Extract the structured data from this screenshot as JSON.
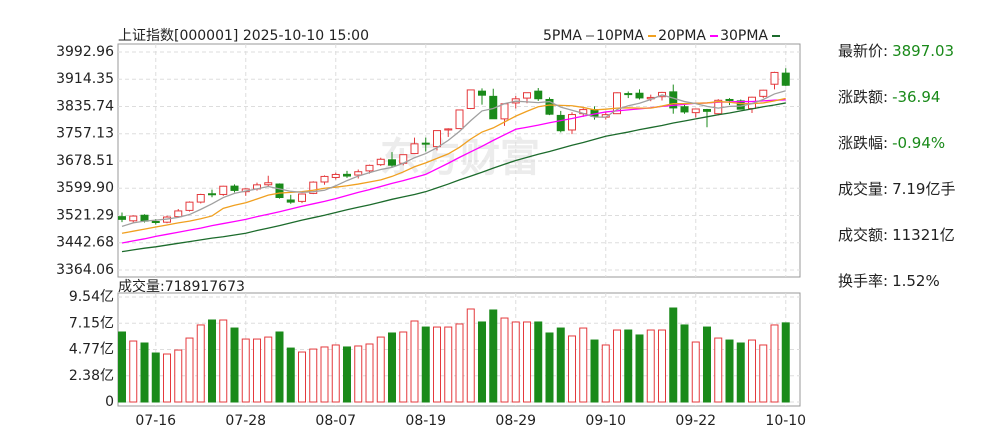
{
  "chart_data": [
    {
      "type": "candlestick",
      "title": "上证指数[000001] 2025-10-10 15:00",
      "watermark": "东方财富",
      "up_color": "#e4393c",
      "down_color": "#1a8a1a",
      "grid": true,
      "ylim": [
        3364.06,
        3992.96
      ],
      "yticks": [
        3992.96,
        3914.35,
        3835.74,
        3757.13,
        3678.51,
        {
          "value": 3599.9,
          "label": "3599.90"
        },
        3521.29,
        3442.68,
        3364.06
      ],
      "open": [
        3518,
        3506,
        3522,
        3504,
        3502,
        3518,
        3536,
        3560,
        3584,
        3582,
        3606,
        3590,
        3598,
        3610,
        3612,
        3566,
        3562,
        3585,
        3618,
        3631,
        3640,
        3638,
        3650,
        3668,
        3682,
        3672,
        3700,
        3730,
        3720,
        3768,
        3772,
        3830,
        3880,
        3865,
        3800,
        3846,
        3860,
        3880,
        3856,
        3810,
        3768,
        3815,
        3827,
        3805,
        3815,
        3873,
        3874,
        3858,
        3864,
        3878,
        3835,
        3818,
        3827,
        3815,
        3856,
        3852,
        3830,
        3865,
        3900,
        3932
      ],
      "high": [
        3530,
        3522,
        3525,
        3511,
        3521,
        3540,
        3562,
        3584,
        3596,
        3607,
        3611,
        3600,
        3616,
        3636,
        3614,
        3581,
        3585,
        3620,
        3637,
        3645,
        3650,
        3654,
        3668,
        3688,
        3704,
        3697,
        3746,
        3746,
        3767,
        3773,
        3826,
        3884,
        3888,
        3887,
        3844,
        3866,
        3876,
        3889,
        3862,
        3823,
        3819,
        3831,
        3836,
        3819,
        3877,
        3879,
        3885,
        3870,
        3878,
        3899,
        3840,
        3830,
        3829,
        3857,
        3860,
        3856,
        3864,
        3884,
        3936,
        3946
      ],
      "low": [
        3502,
        3500,
        3501,
        3495,
        3499,
        3515,
        3533,
        3556,
        3574,
        3578,
        3588,
        3578,
        3593,
        3605,
        3570,
        3555,
        3557,
        3583,
        3610,
        3625,
        3630,
        3628,
        3642,
        3664,
        3660,
        3666,
        3700,
        3706,
        3709,
        3748,
        3772,
        3828,
        3841,
        3800,
        3780,
        3830,
        3845,
        3852,
        3811,
        3761,
        3756,
        3806,
        3798,
        3798,
        3815,
        3860,
        3856,
        3851,
        3853,
        3815,
        3815,
        3804,
        3776,
        3810,
        3840,
        3827,
        3817,
        3860,
        3885,
        3895
      ],
      "close": [
        3510.18,
        3519.65,
        3505.0,
        3503.78,
        3516.83,
        3534.48,
        3559.79,
        3581.86,
        3582.3,
        3605.73,
        3593.66,
        3597.94,
        3609.71,
        3615.72,
        3573.21,
        3559.95,
        3583.31,
        3617.6,
        3633.99,
        3639.67,
        3635.13,
        3647.55,
        3665.92,
        3683.46,
        3666.44,
        3696.77,
        3728.03,
        3727.29,
        3766.21,
        3771.1,
        3825.76,
        3883.56,
        3868.38,
        3800.35,
        3843.6,
        3857.93,
        3875.53,
        3858.13,
        3813.56,
        3765.88,
        3812.51,
        3826.84,
        3807.29,
        3812.22,
        3875.31,
        3870.6,
        3860.5,
        3861.87,
        3876.34,
        3831.66,
        3820.09,
        3828.58,
        3821.83,
        3853.64,
        3853.3,
        3828.11,
        3862.53,
        3882.78,
        3933.97,
        3897.03
      ],
      "series": [
        {
          "name": "5PMA",
          "color": "#a0a0a0",
          "values": [
            3490,
            3500,
            3505,
            3508,
            3511,
            3516,
            3524,
            3539,
            3555,
            3573,
            3585,
            3592,
            3598,
            3605,
            3598,
            3591,
            3588,
            3590,
            3594,
            3607,
            3622,
            3635,
            3645,
            3654,
            3660,
            3672,
            3688,
            3700,
            3717,
            3738,
            3764,
            3795,
            3823,
            3830,
            3844,
            3851,
            3849,
            3847,
            3850,
            3834,
            3825,
            3816,
            3805,
            3805,
            3827,
            3838,
            3845,
            3856,
            3869,
            3860,
            3850,
            3844,
            3836,
            3831,
            3836,
            3837,
            3844,
            3856,
            3872,
            3881
          ]
        },
        {
          "name": "10PMA",
          "color": "#f0a020",
          "values": [
            3470,
            3476,
            3482,
            3488,
            3494,
            3500,
            3505,
            3512,
            3520,
            3542,
            3551,
            3558,
            3569,
            3580,
            3586,
            3588,
            3590,
            3594,
            3600,
            3603,
            3607,
            3612,
            3618,
            3624,
            3634,
            3647,
            3662,
            3673,
            3686,
            3699,
            3718,
            3742,
            3762,
            3774,
            3791,
            3808,
            3822,
            3835,
            3840,
            3839,
            3838,
            3833,
            3826,
            3828,
            3831,
            3832,
            3831,
            3831,
            3837,
            3844,
            3844,
            3845,
            3846,
            3850,
            3848,
            3844,
            3844,
            3846,
            3852,
            3859
          ]
        },
        {
          "name": "20PMA",
          "color": "#ff00ff",
          "values": [
            3442,
            3448,
            3454,
            3461,
            3467,
            3473,
            3479,
            3485,
            3492,
            3498,
            3504,
            3510,
            3518,
            3525,
            3532,
            3540,
            3548,
            3555,
            3562,
            3570,
            3579,
            3588,
            3596,
            3605,
            3614,
            3622,
            3631,
            3640,
            3656,
            3672,
            3689,
            3705,
            3721,
            3738,
            3754,
            3770,
            3776,
            3782,
            3789,
            3795,
            3801,
            3808,
            3814,
            3820,
            3823,
            3826,
            3829,
            3832,
            3836,
            3839,
            3842,
            3845,
            3846,
            3848,
            3849,
            3850,
            3850,
            3852,
            3854,
            3855
          ]
        },
        {
          "name": "30PMA",
          "color": "#1c6b2c",
          "values": [
            3417,
            3422,
            3427,
            3431,
            3436,
            3441,
            3446,
            3451,
            3456,
            3460,
            3465,
            3470,
            3478,
            3485,
            3492,
            3500,
            3508,
            3515,
            3522,
            3530,
            3538,
            3545,
            3552,
            3560,
            3568,
            3575,
            3582,
            3590,
            3601,
            3612,
            3624,
            3635,
            3646,
            3658,
            3669,
            3680,
            3689,
            3698,
            3706,
            3715,
            3724,
            3732,
            3741,
            3750,
            3756,
            3762,
            3769,
            3775,
            3781,
            3788,
            3794,
            3800,
            3806,
            3812,
            3817,
            3823,
            3829,
            3835,
            3840,
            3846
          ]
        }
      ]
    },
    {
      "type": "bar",
      "title": "成交量:718917673",
      "grid": true,
      "ylim": [
        0,
        9.54
      ],
      "yticks": [
        {
          "value": 9.54,
          "label": "9.54亿"
        },
        {
          "value": 7.15,
          "label": "7.15亿"
        },
        {
          "value": 4.77,
          "label": "4.77亿"
        },
        {
          "value": 2.38,
          "label": "2.38亿"
        },
        0
      ],
      "categories": [
        null,
        null,
        null,
        "07-16",
        null,
        null,
        null,
        null,
        null,
        null,
        null,
        "07-28",
        null,
        null,
        null,
        null,
        null,
        null,
        null,
        "08-07",
        null,
        null,
        null,
        null,
        null,
        null,
        null,
        "08-19",
        null,
        null,
        null,
        null,
        null,
        null,
        null,
        "08-29",
        null,
        null,
        null,
        null,
        null,
        null,
        null,
        "09-10",
        null,
        null,
        null,
        null,
        null,
        null,
        null,
        "09-22",
        null,
        null,
        null,
        null,
        null,
        null,
        null,
        "10-10"
      ],
      "values": [
        6.36,
        5.54,
        5.36,
        4.45,
        4.36,
        4.72,
        5.81,
        7.0,
        7.45,
        7.45,
        6.72,
        5.72,
        5.72,
        5.9,
        6.36,
        4.9,
        4.54,
        4.81,
        5.0,
        5.18,
        5.0,
        5.09,
        5.27,
        5.9,
        6.27,
        6.36,
        7.36,
        6.81,
        6.81,
        6.81,
        7.09,
        8.45,
        7.27,
        8.36,
        7.63,
        7.27,
        7.27,
        7.27,
        6.27,
        6.72,
        6.0,
        6.72,
        5.63,
        5.18,
        6.54,
        6.54,
        6.09,
        6.54,
        6.54,
        8.54,
        7.0,
        5.45,
        6.81,
        5.81,
        5.63,
        5.36,
        5.63,
        5.18,
        7.0,
        7.19
      ]
    }
  ],
  "info": [
    {
      "label": "最新价:",
      "value": "3897.03",
      "color": "#1a8a1a"
    },
    {
      "label": "涨跌额:",
      "value": "-36.94",
      "color": "#1a8a1a"
    },
    {
      "label": "涨跌幅:",
      "value": "-0.94%",
      "color": "#1a8a1a"
    },
    {
      "label": "成交量:",
      "value": "7.19亿手",
      "color": "#222222"
    },
    {
      "label": "成交额:",
      "value": "11321亿",
      "color": "#222222"
    },
    {
      "label": "换手率:",
      "value": "1.52%",
      "color": "#222222"
    }
  ]
}
